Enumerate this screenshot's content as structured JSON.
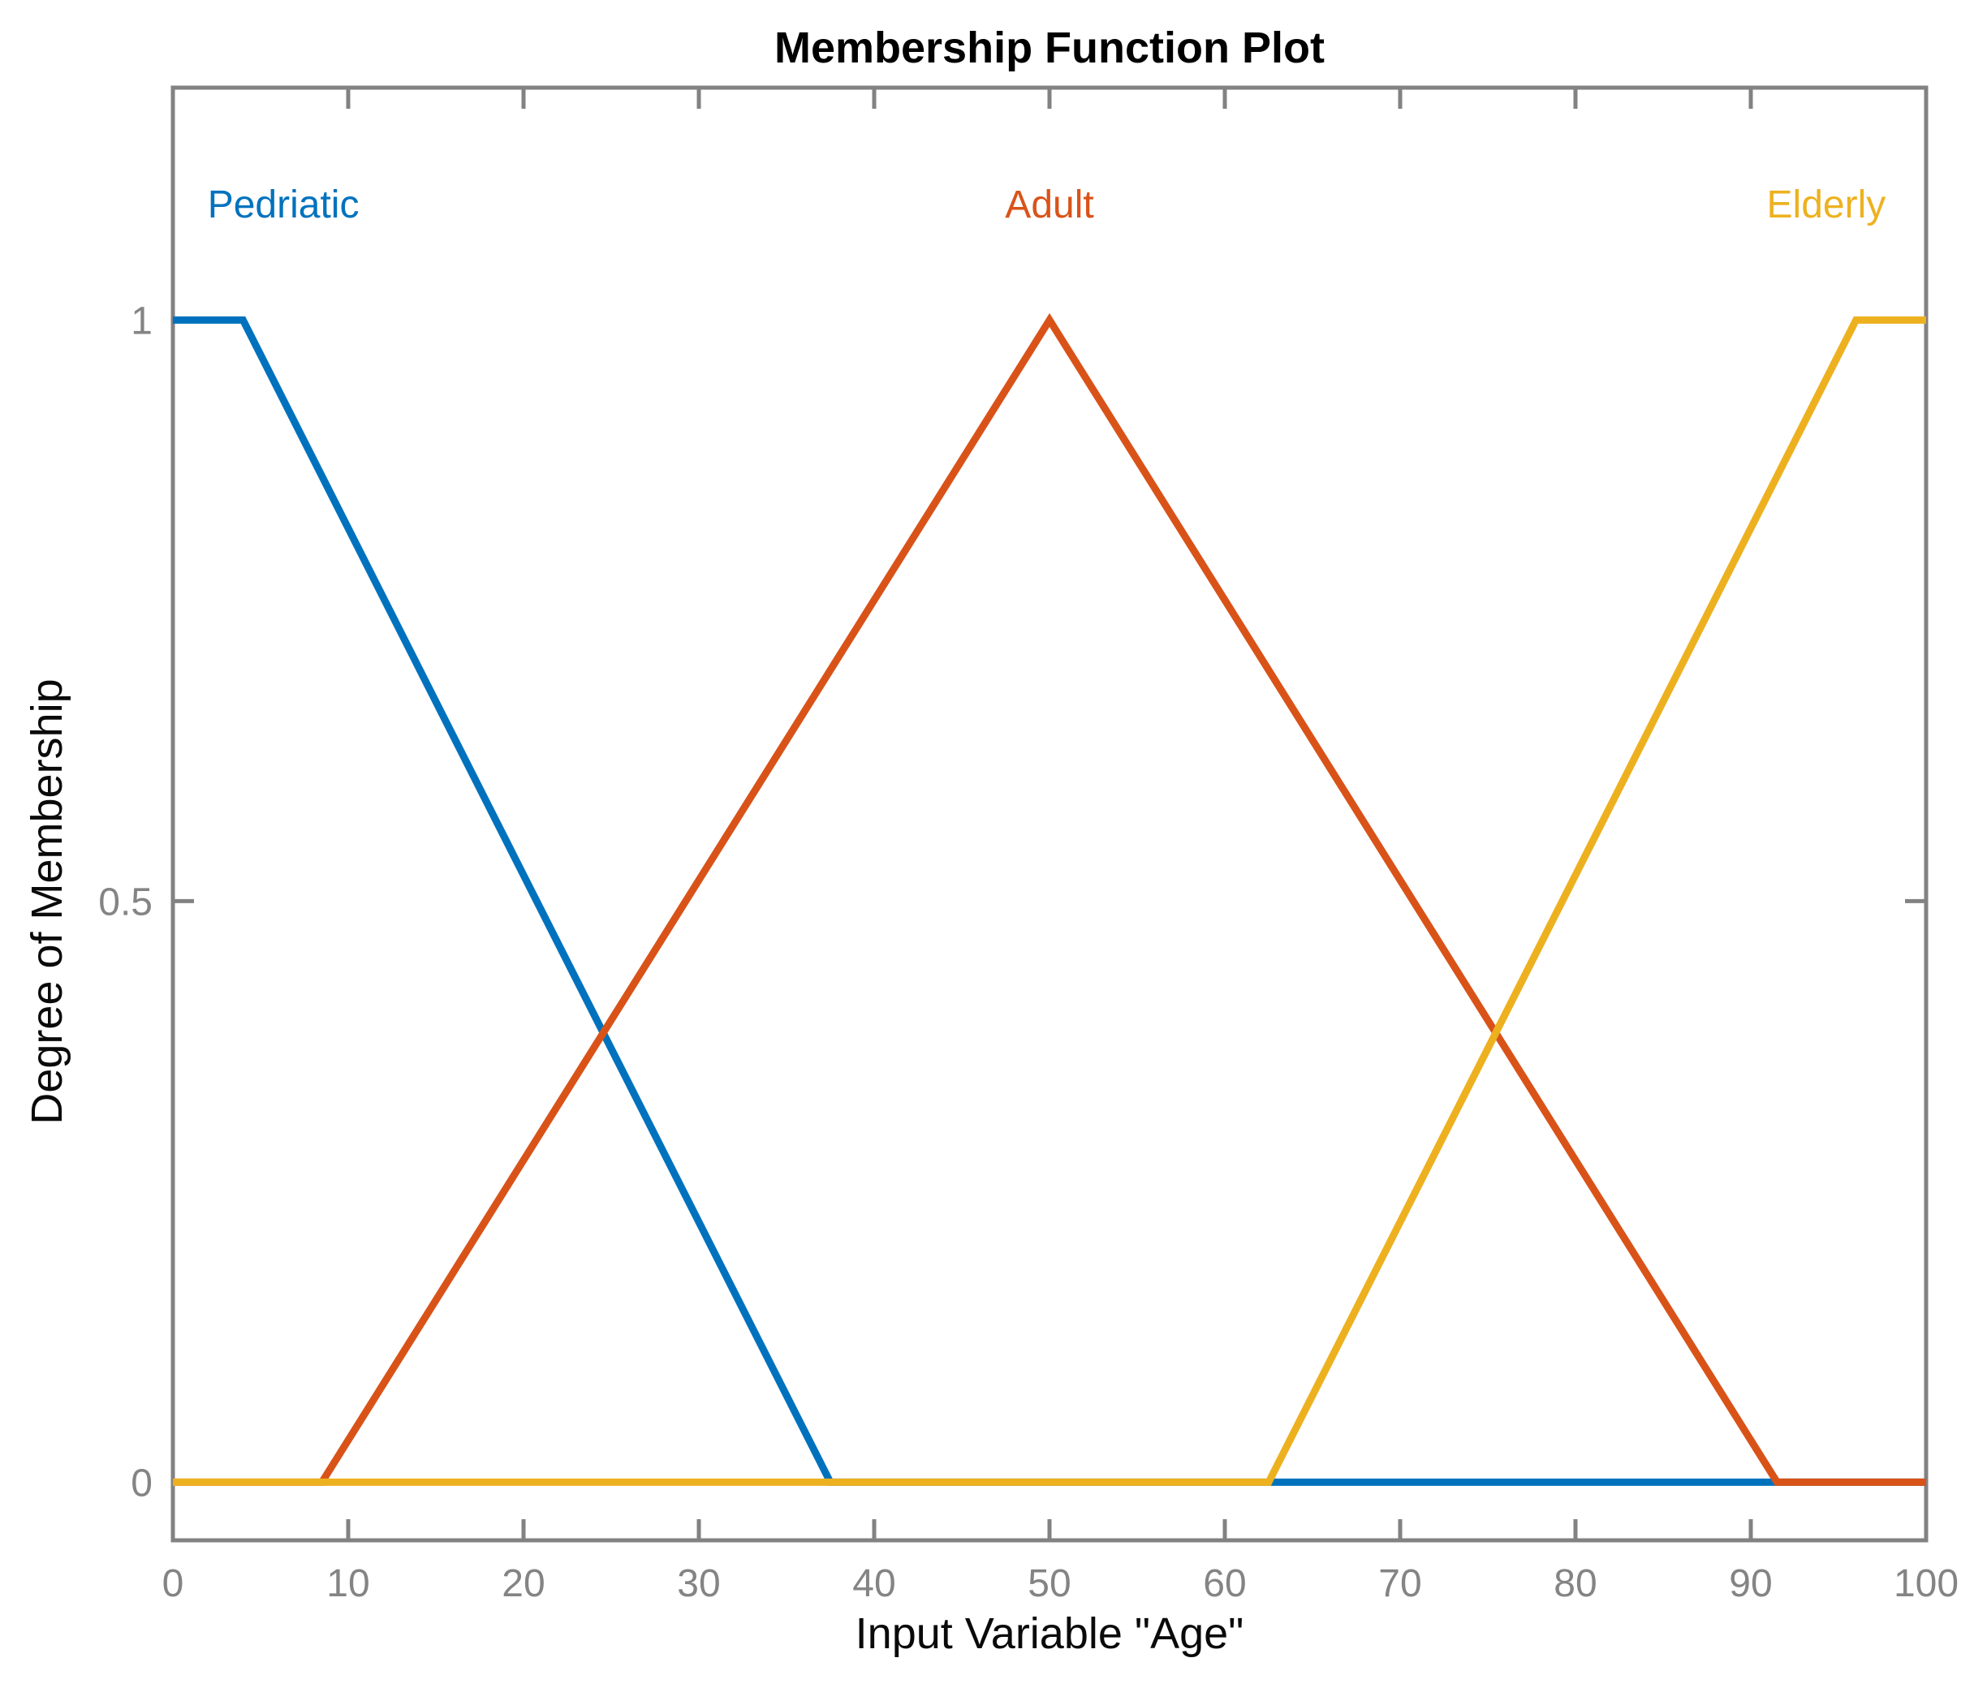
{
  "title": "Membership Function Plot",
  "chart_data": {
    "type": "line",
    "title": "Membership Function Plot",
    "xlabel": "Input Variable \"Age\"",
    "ylabel": "Degree of Membership",
    "xlim": [
      0,
      100
    ],
    "ylim": [
      -0.05,
      1.2
    ],
    "xticks": [
      0,
      10,
      20,
      30,
      40,
      50,
      60,
      70,
      80,
      90,
      100
    ],
    "yticks": [
      0,
      0.5,
      1
    ],
    "grid": false,
    "legend_position": "labels-inside-top",
    "axis_color": "#828282",
    "tick_label_color": "#848484",
    "series": [
      {
        "name": "Pedriatic",
        "color": "#0072BD",
        "shape": "trapezoid",
        "points": [
          [
            0,
            1
          ],
          [
            4,
            1
          ],
          [
            37.5,
            0
          ],
          [
            100,
            0
          ]
        ],
        "label_pos": [
          6.3,
          1.1
        ]
      },
      {
        "name": "Adult",
        "color": "#D95319",
        "shape": "triangle",
        "points": [
          [
            0,
            0
          ],
          [
            8.5,
            0
          ],
          [
            50,
            1
          ],
          [
            91.5,
            0
          ],
          [
            100,
            0
          ]
        ],
        "label_pos": [
          50,
          1.1
        ]
      },
      {
        "name": "Elderly",
        "color": "#EDB120",
        "shape": "trapezoid",
        "points": [
          [
            0,
            0
          ],
          [
            62.5,
            0
          ],
          [
            96,
            1
          ],
          [
            100,
            1
          ]
        ],
        "label_pos": [
          94.3,
          1.1
        ]
      }
    ]
  }
}
